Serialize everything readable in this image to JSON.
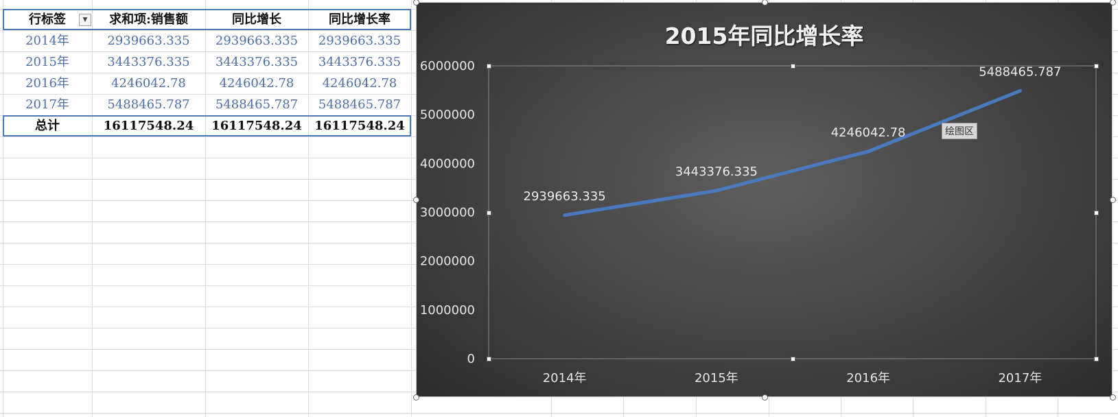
{
  "pivot": {
    "headers": [
      "行标签",
      "求和项:销售额",
      "同比增长",
      "同比增长率"
    ],
    "rows": [
      [
        "2014年",
        "2939663.335",
        "2939663.335",
        "2939663.335"
      ],
      [
        "2015年",
        "3443376.335",
        "3443376.335",
        "3443376.335"
      ],
      [
        "2016年",
        "4246042.78",
        "4246042.78",
        "4246042.78"
      ],
      [
        "2017年",
        "5488465.787",
        "5488465.787",
        "5488465.787"
      ]
    ],
    "total": [
      "总计",
      "16117548.24",
      "16117548.24",
      "16117548.24"
    ],
    "filter_icon": "dropdown-arrow-icon"
  },
  "chart_data": {
    "type": "line",
    "title": "2015年同比增长率",
    "categories": [
      "2014年",
      "2015年",
      "2016年",
      "2017年"
    ],
    "series": [
      {
        "values": [
          2939663.335,
          3443376.335,
          4246042.78,
          5488465.787
        ],
        "labels": [
          "2939663.335",
          "3443376.335",
          "4246042.78",
          "5488465.787"
        ],
        "color": "#4a79bd"
      }
    ],
    "ylim": [
      0,
      6000000
    ],
    "yticks": [
      "0",
      "1000000",
      "2000000",
      "3000000",
      "4000000",
      "5000000",
      "6000000"
    ],
    "xlabel": "",
    "ylabel": "",
    "grid": false,
    "legend": "none"
  },
  "tooltip": "绘图区"
}
